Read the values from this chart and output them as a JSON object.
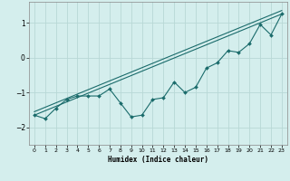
{
  "title": "",
  "xlabel": "Humidex (Indice chaleur)",
  "ylabel": "",
  "background_color": "#d4eeed",
  "grid_color": "#b8d8d6",
  "line_color": "#1a6b6b",
  "xlim": [
    -0.5,
    23.5
  ],
  "ylim": [
    -2.5,
    1.6
  ],
  "yticks": [
    -2,
    -1,
    0,
    1
  ],
  "xticks": [
    0,
    1,
    2,
    3,
    4,
    5,
    6,
    7,
    8,
    9,
    10,
    11,
    12,
    13,
    14,
    15,
    16,
    17,
    18,
    19,
    20,
    21,
    22,
    23
  ],
  "line1_x": [
    0,
    1,
    2,
    3,
    4,
    5,
    6,
    7,
    8,
    9,
    10,
    11,
    12,
    13,
    14,
    15,
    16,
    17,
    18,
    19,
    20,
    21,
    22,
    23
  ],
  "line1_y": [
    -1.65,
    -1.75,
    -1.45,
    -1.2,
    -1.1,
    -1.1,
    -1.1,
    -0.9,
    -1.3,
    -1.7,
    -1.65,
    -1.2,
    -1.15,
    -0.7,
    -1.0,
    -0.85,
    -0.3,
    -0.15,
    0.2,
    0.15,
    0.4,
    0.95,
    0.65,
    1.25
  ],
  "line2_x": [
    0,
    23
  ],
  "line2_y": [
    -1.65,
    1.25
  ],
  "line3_x": [
    0,
    23
  ],
  "line3_y": [
    -1.55,
    1.35
  ]
}
